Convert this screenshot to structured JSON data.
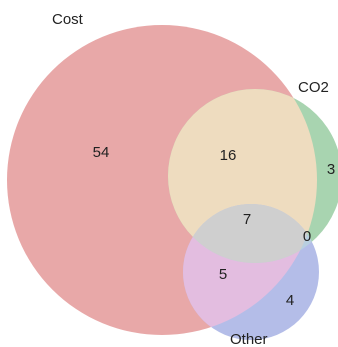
{
  "chart_data": {
    "type": "venn",
    "sets": [
      {
        "name": "Cost",
        "label": "Cost",
        "color": "#e8a8a8"
      },
      {
        "name": "CO2",
        "label": "CO2",
        "color": "#a8d4b0"
      },
      {
        "name": "Other",
        "label": "Other",
        "color": "#b4bde8"
      }
    ],
    "regions": {
      "cost_only": "54",
      "cost_co2": "16",
      "co2_only": "3",
      "all_three": "7",
      "co2_other": "0",
      "cost_other": "5",
      "other_only": "4"
    },
    "overlap_colors": {
      "cost_co2": "#eedcbf",
      "cost_other": "#e3bde0",
      "co2_other": "#b8cfe0",
      "all_three": "#cfcfcf"
    }
  }
}
